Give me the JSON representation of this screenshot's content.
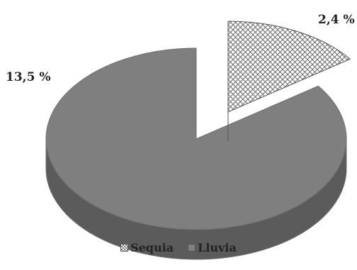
{
  "chart_data": {
    "type": "pie",
    "style": "3d-exploded",
    "slices": [
      {
        "name": "Sequia",
        "value": 2.4,
        "label": "2,4 %",
        "fill": "crosshatch",
        "color": "#ffffff"
      },
      {
        "name": "Lluvia",
        "value": 13.5,
        "label": "13,5 %",
        "fill": "solid",
        "color": "#7f7f7f"
      }
    ],
    "legend": {
      "position": "bottom",
      "items": [
        "Sequia",
        "Lluvia"
      ]
    }
  }
}
